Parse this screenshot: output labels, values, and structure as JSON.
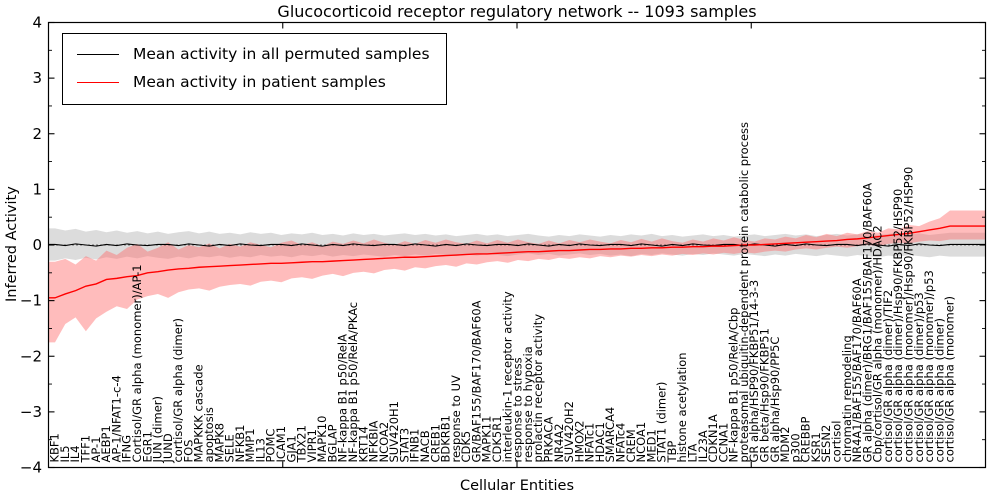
{
  "title": "Glucocorticoid receptor regulatory network -- 1093 samples",
  "axes": {
    "xlabel": "Cellular Entities",
    "ylabel": "Inferred Activity"
  },
  "legend": {
    "items": [
      {
        "label": "Mean activity in all permuted samples",
        "color": "#000000"
      },
      {
        "label": "Mean activity in patient samples",
        "color": "#ff0000"
      }
    ]
  },
  "colors": {
    "permuted_line": "#000000",
    "patient_line": "#ff0000",
    "permuted_band": "#bfbfbf",
    "patient_band": "#ff6a6a",
    "frame": "#000000"
  },
  "chart_data": {
    "type": "line",
    "title": "Glucocorticoid receptor regulatory network -- 1093 samples",
    "xlabel": "Cellular Entities",
    "ylabel": "Inferred Activity",
    "ylim": [
      -4,
      4
    ],
    "yticks": [
      4,
      3,
      2,
      1,
      0,
      -1,
      -2,
      -3,
      -4
    ],
    "grid": false,
    "legend_position": "upper left",
    "zero_line_dotted": true,
    "categories": [
      "KBF1",
      "IL5",
      "IL4",
      "TFF1",
      "AP-1",
      "AEBP1",
      "AP-1/NFAT1-c-4",
      "IFNG",
      "Cortisol/GR alpha (monomer)/AP-1",
      "EGR1",
      "JUN (dimer)",
      "JUND",
      "cortisol/GR alpha (dimer)",
      "FOS",
      "MAPKKK cascade",
      "apoptosis",
      "MAPK8",
      "SELE",
      "NFKB1",
      "MMP1",
      "IL13",
      "POMC",
      "ICAM1",
      "GJA1",
      "TBX21",
      "VIPR1",
      "MAPK10",
      "BGLAP",
      "NF-kappa B1 p50/RelA",
      "NF-kappa B1 p50/RelA/PKAc",
      "KRT14",
      "NFKBIA",
      "NCOA2",
      "SUV420H1",
      "STAT3",
      "IFNB1",
      "NACB",
      "CREB1",
      "BDKRB1",
      "response to UV",
      "CDK5",
      "GR/BAF155/BAF170/BAF60A",
      "MAPK11",
      "CDK5R1",
      "interleukin-1 receptor activity",
      "response to stress",
      "response to hypoxia",
      "prolactin receptor activity",
      "PRKACA",
      "NR4A2",
      "SUV420H2",
      "HMOX2",
      "NFATc1",
      "HDAC1",
      "SMARCA4",
      "NFATc4",
      "CREM",
      "NCOA1",
      "MED1",
      "STAT1 (dimer)",
      "TBP",
      "histone acetylation",
      "LTA",
      "IL23A",
      "CDKN1A",
      "CCNA1",
      "NF-kappa B1 p50/RelA/Cbp",
      "proteasomal ubiquitin-dependent protein catabolic process",
      "GR alpha/HSP90/FKBP51/14-3-3",
      "GR beta/Hsp90/FKBP51",
      "GR alpha/Hsp90/PP5C",
      "MDM2",
      "p300",
      "CREBBP",
      "KSR1",
      "SESN2",
      "cortisol",
      "chromatin remodeling",
      "NR4A1/BAF155/BAF170/BAF60A",
      "GR alpha (dimer)/BRG1/BAF155/BAF170/BAF60A",
      "Cbp/cortisol/GR alpha (monomer)/HDAC2",
      "cortisol/GR alpha (dimer)/TIF2",
      "cortisol/GR alpha (dimer)/Hsp90/FKBP52/HSP90",
      "cortisol/GR alpha (monomer)/Hsp90/FKBP52/HSP90",
      "cortisol/GR alpha (dimer)/p53",
      "cortisol/GR alpha (monomer)/p53",
      "cortisol/GR alpha (dimer)",
      "cortisol/GR alpha (monomer)"
    ],
    "series": [
      {
        "name": "Mean activity in all permuted samples",
        "color": "#000000",
        "band_color": "#bfbfbf",
        "values": [
          0.01,
          -0.01,
          0.02,
          0,
          -0.02,
          0.01,
          -0.01,
          0.02,
          0,
          -0.01,
          0.01,
          0.01,
          -0.01,
          0.02,
          0,
          -0.02,
          0.01,
          -0.01,
          0.02,
          0,
          -0.01,
          0.01,
          0.01,
          -0.01,
          0.02,
          0,
          -0.02,
          0.01,
          -0.01,
          0.02,
          0,
          -0.01,
          0.01,
          0.01,
          -0.01,
          0.02,
          0,
          -0.02,
          0.01,
          -0.01,
          0.02,
          0,
          -0.01,
          0.01,
          0.01,
          -0.01,
          0.02,
          0,
          -0.02,
          0.01,
          -0.01,
          0.02,
          0,
          -0.01,
          0.01,
          0.01,
          -0.01,
          0.02,
          0,
          -0.02,
          0.01,
          -0.01,
          0.02,
          0,
          -0.01,
          0.01,
          0.01,
          -0.01,
          0.02,
          0,
          -0.02,
          0.01,
          -0.01,
          0.02,
          0,
          -0.01,
          0.01,
          0.01,
          -0.01,
          0.02,
          0,
          -0.02,
          0.01,
          -0.01,
          0.02,
          0,
          -0.01,
          0.01
        ],
        "band_lo": [
          -0.28,
          -0.24,
          -0.27,
          -0.23,
          -0.26,
          -0.22,
          -0.25,
          -0.21,
          -0.24,
          -0.2,
          -0.23,
          -0.25,
          -0.21,
          -0.24,
          -0.2,
          -0.22,
          -0.19,
          -0.23,
          -0.2,
          -0.22,
          -0.18,
          -0.21,
          -0.19,
          -0.22,
          -0.18,
          -0.2,
          -0.17,
          -0.21,
          -0.18,
          -0.2,
          -0.17,
          -0.19,
          -0.21,
          -0.18,
          -0.2,
          -0.17,
          -0.19,
          -0.16,
          -0.18,
          -0.2,
          -0.17,
          -0.19,
          -0.16,
          -0.18,
          -0.2,
          -0.17,
          -0.15,
          -0.18,
          -0.16,
          -0.19,
          -0.17,
          -0.15,
          -0.18,
          -0.16,
          -0.19,
          -0.17,
          -0.2,
          -0.16,
          -0.18,
          -0.15,
          -0.17,
          -0.19,
          -0.16,
          -0.18,
          -0.15,
          -0.17,
          -0.19,
          -0.16,
          -0.18,
          -0.2,
          -0.17,
          -0.19,
          -0.16,
          -0.18,
          -0.2,
          -0.17,
          -0.19,
          -0.21,
          -0.18,
          -0.2,
          -0.22,
          -0.19,
          -0.21,
          -0.18,
          -0.2,
          -0.22,
          -0.19,
          -0.21
        ],
        "band_hi": [
          0.3,
          0.26,
          0.29,
          0.24,
          0.27,
          0.23,
          0.26,
          0.22,
          0.25,
          0.21,
          0.24,
          0.2,
          0.23,
          0.25,
          0.21,
          0.24,
          0.2,
          0.22,
          0.19,
          0.23,
          0.2,
          0.22,
          0.18,
          0.21,
          0.19,
          0.22,
          0.18,
          0.2,
          0.17,
          0.21,
          0.18,
          0.2,
          0.17,
          0.19,
          0.21,
          0.18,
          0.2,
          0.17,
          0.19,
          0.16,
          0.18,
          0.2,
          0.17,
          0.19,
          0.16,
          0.18,
          0.2,
          0.17,
          0.15,
          0.18,
          0.16,
          0.19,
          0.17,
          0.15,
          0.18,
          0.16,
          0.19,
          0.17,
          0.2,
          0.16,
          0.18,
          0.15,
          0.17,
          0.19,
          0.16,
          0.18,
          0.15,
          0.17,
          0.19,
          0.16,
          0.18,
          0.2,
          0.17,
          0.19,
          0.16,
          0.18,
          0.2,
          0.17,
          0.19,
          0.21,
          0.18,
          0.2,
          0.22,
          0.19,
          0.21,
          0.18,
          0.2,
          0.22
        ]
      },
      {
        "name": "Mean activity in patient samples",
        "color": "#ff0000",
        "band_color": "#ff6a6a",
        "values": [
          -0.95,
          -0.88,
          -0.82,
          -0.74,
          -0.7,
          -0.62,
          -0.6,
          -0.57,
          -0.55,
          -0.5,
          -0.48,
          -0.45,
          -0.43,
          -0.42,
          -0.4,
          -0.39,
          -0.38,
          -0.37,
          -0.36,
          -0.35,
          -0.34,
          -0.33,
          -0.33,
          -0.32,
          -0.31,
          -0.3,
          -0.3,
          -0.29,
          -0.28,
          -0.27,
          -0.26,
          -0.25,
          -0.24,
          -0.23,
          -0.22,
          -0.22,
          -0.21,
          -0.2,
          -0.19,
          -0.18,
          -0.17,
          -0.16,
          -0.16,
          -0.15,
          -0.14,
          -0.13,
          -0.12,
          -0.12,
          -0.11,
          -0.1,
          -0.1,
          -0.09,
          -0.08,
          -0.08,
          -0.07,
          -0.07,
          -0.06,
          -0.06,
          -0.05,
          -0.05,
          -0.04,
          -0.04,
          -0.03,
          -0.03,
          -0.02,
          -0.02,
          -0.01,
          0.0,
          0.0,
          0.01,
          0.02,
          0.03,
          0.04,
          0.05,
          0.06,
          0.07,
          0.08,
          0.1,
          0.11,
          0.13,
          0.15,
          0.17,
          0.19,
          0.21,
          0.24,
          0.27,
          0.3,
          0.34
        ],
        "band_lo": [
          -1.75,
          -1.42,
          -1.3,
          -1.55,
          -1.32,
          -1.2,
          -1.1,
          -1.15,
          -0.98,
          -0.92,
          -0.88,
          -0.95,
          -0.85,
          -0.8,
          -0.78,
          -0.82,
          -0.75,
          -0.72,
          -0.7,
          -0.73,
          -0.66,
          -0.64,
          -0.67,
          -0.6,
          -0.58,
          -0.61,
          -0.55,
          -0.52,
          -0.56,
          -0.5,
          -0.48,
          -0.51,
          -0.45,
          -0.43,
          -0.46,
          -0.4,
          -0.42,
          -0.38,
          -0.36,
          -0.39,
          -0.33,
          -0.35,
          -0.31,
          -0.29,
          -0.32,
          -0.27,
          -0.29,
          -0.25,
          -0.27,
          -0.23,
          -0.25,
          -0.22,
          -0.24,
          -0.2,
          -0.22,
          -0.19,
          -0.21,
          -0.18,
          -0.2,
          -0.17,
          -0.19,
          -0.16,
          -0.18,
          -0.15,
          -0.17,
          -0.14,
          -0.16,
          -0.13,
          -0.15,
          -0.12,
          -0.1,
          -0.12,
          -0.08,
          -0.06,
          -0.08,
          -0.05,
          -0.03,
          -0.05,
          -0.02,
          0.0,
          -0.02,
          0.02,
          0.04,
          0.03,
          0.06,
          0.08,
          0.07,
          0.1
        ],
        "band_hi": [
          -0.3,
          -0.25,
          -0.35,
          -0.2,
          -0.28,
          -0.1,
          -0.18,
          -0.05,
          0.02,
          -0.12,
          -0.05,
          0.05,
          -0.08,
          0.0,
          -0.04,
          0.03,
          -0.06,
          0.02,
          -0.03,
          0.05,
          0.0,
          -0.04,
          0.04,
          0.08,
          0.0,
          0.05,
          -0.02,
          0.06,
          0.02,
          0.08,
          0.03,
          0.1,
          0.04,
          0.0,
          0.07,
          0.02,
          0.09,
          0.04,
          0.1,
          0.05,
          0.02,
          0.08,
          0.03,
          0.09,
          0.04,
          0.1,
          0.05,
          0.02,
          0.08,
          0.03,
          0.09,
          0.05,
          0.1,
          0.06,
          0.03,
          0.09,
          0.05,
          0.11,
          0.06,
          0.12,
          0.07,
          0.04,
          0.1,
          0.06,
          0.12,
          0.08,
          0.14,
          0.09,
          0.06,
          0.12,
          0.1,
          0.15,
          0.12,
          0.18,
          0.14,
          0.2,
          0.16,
          0.22,
          0.19,
          0.25,
          0.22,
          0.3,
          0.28,
          0.36,
          0.34,
          0.42,
          0.48,
          0.62
        ]
      }
    ]
  }
}
